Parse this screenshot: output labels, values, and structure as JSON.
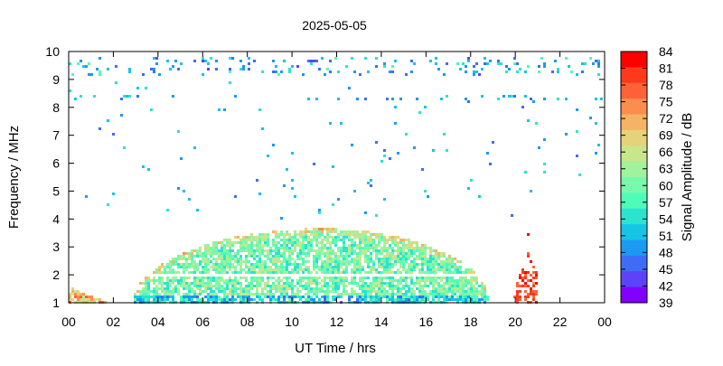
{
  "chart_data": {
    "type": "heatmap",
    "title": "2025-05-05",
    "xlabel": "UT Time / hrs",
    "ylabel": "Frequency / MHz",
    "colorbar_label": "Signal Amplitude / dB",
    "x_ticks": [
      "00",
      "02",
      "04",
      "06",
      "08",
      "10",
      "12",
      "14",
      "16",
      "18",
      "20",
      "22",
      "00"
    ],
    "x_range_hours": [
      0,
      24
    ],
    "y_ticks": [
      1,
      2,
      3,
      4,
      5,
      6,
      7,
      8,
      9,
      10
    ],
    "ylim": [
      1,
      10
    ],
    "colorbar_ticks": [
      84,
      81,
      78,
      75,
      72,
      69,
      66,
      63,
      60,
      57,
      54,
      51,
      48,
      45,
      42,
      39
    ],
    "colorbar_range": [
      39,
      84
    ],
    "colorbar_colors": [
      "#ff0000",
      "#ff3a1c",
      "#ff6236",
      "#fd8c4f",
      "#f5b365",
      "#e6d27a",
      "#c9e68c",
      "#a0f29c",
      "#78f8ab",
      "#4ffbb8",
      "#2ce3d0",
      "#16c4e6",
      "#1b9af2",
      "#3f6cf6",
      "#5d43f8",
      "#8000ff"
    ],
    "regions": [
      {
        "name": "daytime-absorption-envelope",
        "x_start": 2.8,
        "x_end": 18.8,
        "peak_x": 11.3,
        "y_bottom": 1,
        "y_top_peak": 3.7,
        "typical_db": 60
      },
      {
        "name": "high-band-streaks",
        "x_start": 0.0,
        "x_end": 24.0,
        "y_bottom": 9.2,
        "y_top": 9.9,
        "typical_db": 50
      },
      {
        "name": "scattered-mid-band",
        "x_start": 0.0,
        "x_end": 24.0,
        "y_bottom": 4.0,
        "y_top": 9.0,
        "typical_db": 50
      },
      {
        "name": "early-morning-patch",
        "x_start": 0.0,
        "x_end": 1.6,
        "y_bottom": 1.0,
        "y_top": 1.6,
        "typical_db": 72
      },
      {
        "name": "evening-burst",
        "x_start": 19.4,
        "x_end": 21.0,
        "y_bottom": 1.0,
        "y_top": 3.5,
        "typical_db": 80
      }
    ],
    "grid": false,
    "legend": "colorbar-right"
  }
}
